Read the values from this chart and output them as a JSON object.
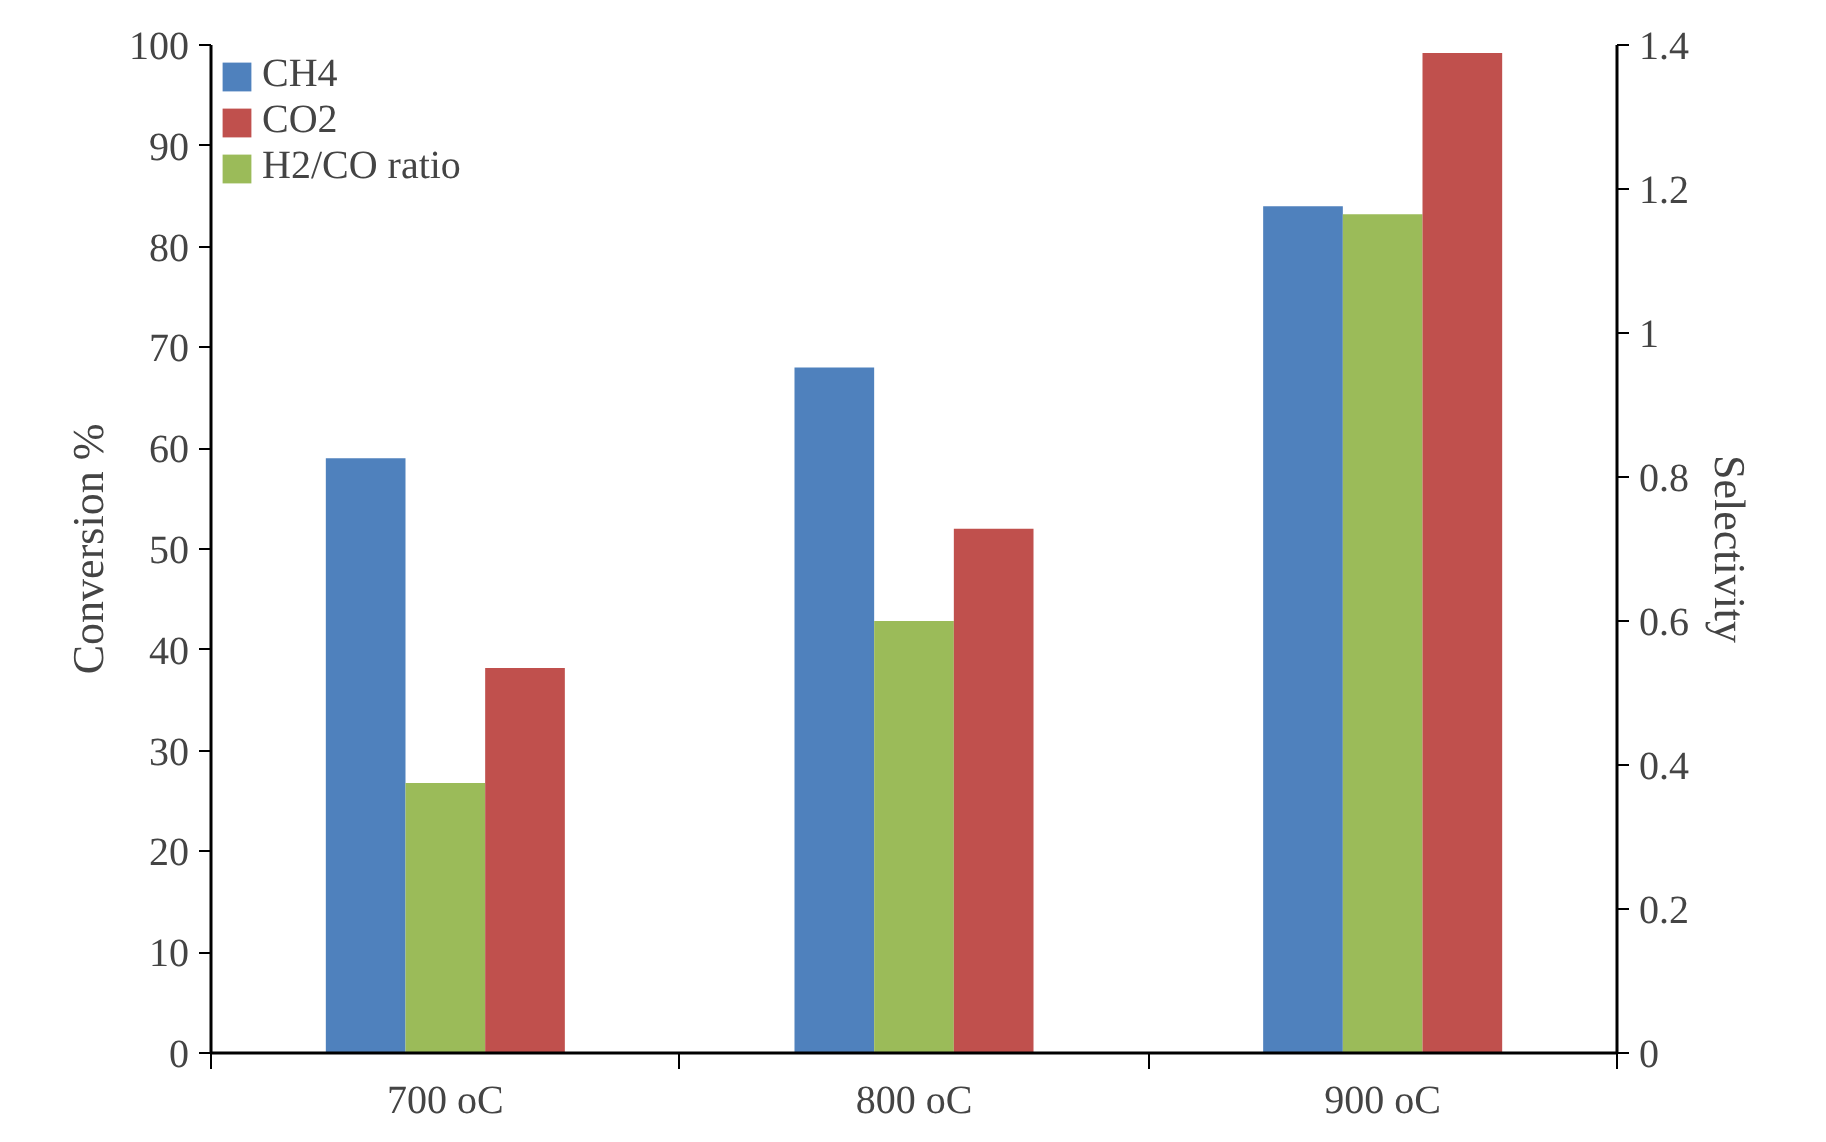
{
  "chart_data": {
    "type": "bar",
    "xlabel": null,
    "ylabel": "Conversion %",
    "y2label": "Selectivity",
    "categories": [
      "700 oC",
      "800 oC",
      "900 oC"
    ],
    "series": [
      {
        "name": "CH4",
        "color": "#4f81bd",
        "values": [
          59,
          68,
          84
        ]
      },
      {
        "name": "H2/CO ratio",
        "color": "#9bbb59",
        "values": [
          0.375,
          0.6,
          1.165
        ],
        "axis": "y2"
      },
      {
        "name": "CO2",
        "color": "#c0504d",
        "values": [
          38.2,
          52,
          99.2
        ]
      }
    ],
    "ylim": [
      0,
      100
    ],
    "yticks": [
      0,
      10,
      20,
      30,
      40,
      50,
      60,
      70,
      80,
      90,
      100
    ],
    "y2lim": [
      0,
      1.4
    ],
    "y2ticks": [
      0,
      0.2,
      0.4,
      0.6,
      0.8,
      1,
      1.2,
      1.4
    ],
    "legend": "top left",
    "grid": false
  }
}
